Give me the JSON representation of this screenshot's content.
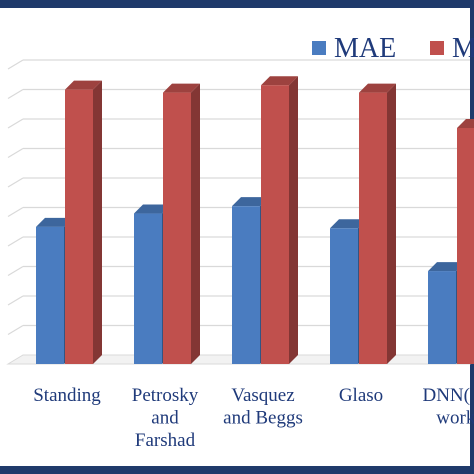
{
  "chart_data": {
    "type": "bar",
    "title": "",
    "xlabel": "",
    "ylabel": "",
    "categories": [
      [
        "Standing"
      ],
      [
        "Petrosky",
        "and",
        "Farshad"
      ],
      [
        "Vasquez",
        "and Beggs"
      ],
      [
        "Glaso"
      ],
      [
        "DNN( Th",
        "work)"
      ]
    ],
    "series": [
      {
        "name": "MAE",
        "color": "#4a7cc0",
        "values": [
          4.65,
          5.1,
          5.35,
          4.6,
          3.15
        ]
      },
      {
        "name": "M",
        "color": "#c0504d",
        "values": [
          9.3,
          9.2,
          9.45,
          9.2,
          8.0
        ]
      }
    ],
    "ylim": [
      0,
      10.5
    ],
    "grid": true,
    "legend_position": "top-right"
  }
}
